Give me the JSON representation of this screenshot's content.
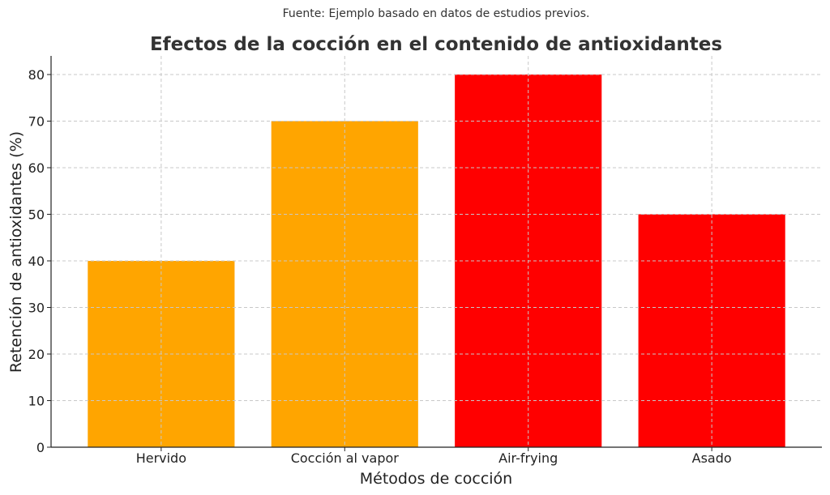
{
  "chart_data": {
    "type": "bar",
    "source_note": "Fuente: Ejemplo basado en datos de estudios previos.",
    "title": "Efectos de la cocción en el contenido de antioxidantes",
    "xlabel": "Métodos de cocción",
    "ylabel": "Retención de antioxidantes (%)",
    "categories": [
      "Hervido",
      "Cocción al vapor",
      "Air-frying",
      "Asado"
    ],
    "values": [
      40,
      70,
      80,
      50
    ],
    "colors": [
      "#FFA500",
      "#FFA500",
      "#FF0000",
      "#FF0000"
    ],
    "ylim": [
      0,
      84
    ],
    "yticks": [
      "0",
      "10",
      "20",
      "30",
      "40",
      "50",
      "60",
      "70",
      "80"
    ],
    "grid": true,
    "legend": "none"
  }
}
